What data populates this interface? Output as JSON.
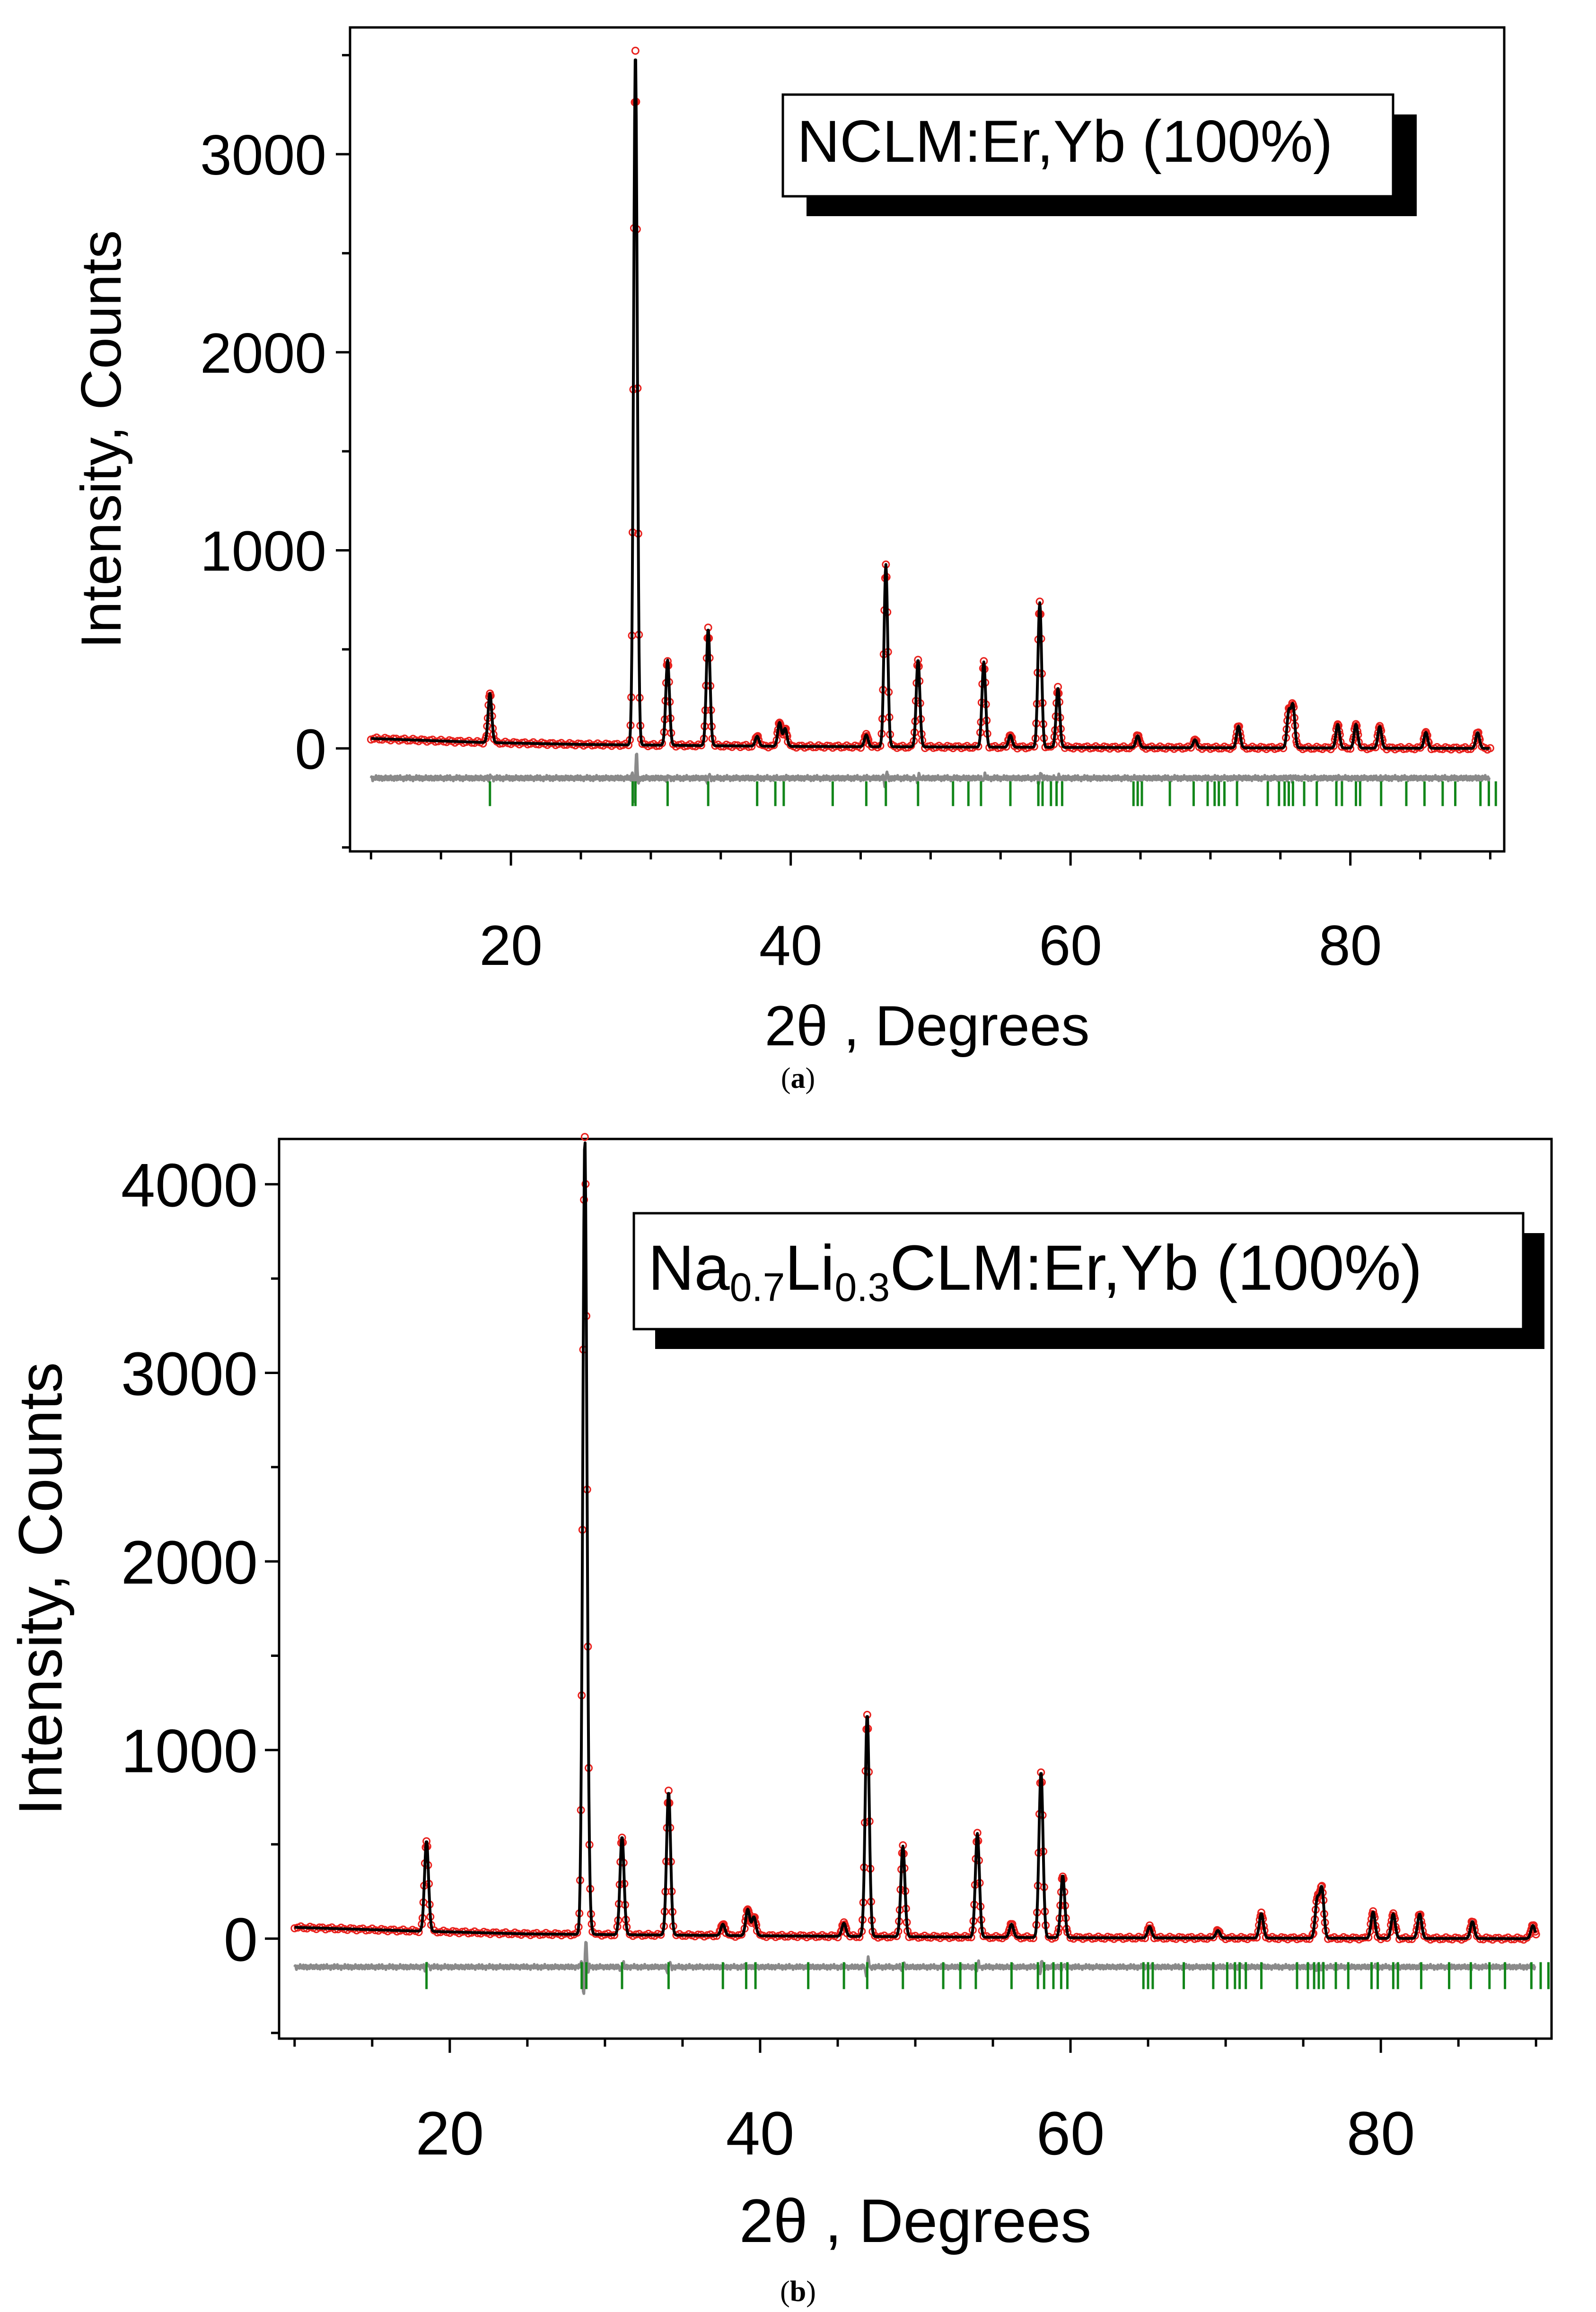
{
  "captions": [
    "(a)",
    "(b)"
  ],
  "legend_style": {
    "box_fill": "#ffffff",
    "shadow": "#000000"
  },
  "colors": {
    "observed": "#e8201c",
    "calculated": "#000000",
    "difference": "#8a8a8a",
    "bragg_ticks": "#12861a"
  },
  "chart_data": [
    {
      "type": "line",
      "panel": "a",
      "caption": "(a)",
      "label": {
        "main": "NCLM:Er,Yb (100%)",
        "sub1": "",
        "sub2": "",
        "rest": ""
      },
      "xlabel": "2θ , Degrees",
      "ylabel": "Intensity, Counts",
      "xlim": [
        8.5,
        91
      ],
      "ylim": [
        -520,
        3640
      ],
      "xticks": [
        20,
        40,
        60,
        80
      ],
      "yticks": [
        0,
        1000,
        2000,
        3000
      ],
      "background": [
        [
          10,
          50
        ],
        [
          14,
          40
        ],
        [
          18,
          30
        ],
        [
          25,
          20
        ],
        [
          40,
          10
        ],
        [
          60,
          5
        ],
        [
          90,
          0
        ]
      ],
      "peaks": [
        {
          "x": 18.5,
          "y": 250
        },
        {
          "x": 28.9,
          "y": 3500
        },
        {
          "x": 31.2,
          "y": 430
        },
        {
          "x": 34.1,
          "y": 590
        },
        {
          "x": 37.6,
          "y": 50
        },
        {
          "x": 39.2,
          "y": 120
        },
        {
          "x": 39.6,
          "y": 90
        },
        {
          "x": 45.4,
          "y": 60
        },
        {
          "x": 46.8,
          "y": 920
        },
        {
          "x": 49.1,
          "y": 440
        },
        {
          "x": 53.8,
          "y": 430
        },
        {
          "x": 55.7,
          "y": 60
        },
        {
          "x": 57.8,
          "y": 730
        },
        {
          "x": 59.1,
          "y": 300
        },
        {
          "x": 64.8,
          "y": 60
        },
        {
          "x": 68.9,
          "y": 40
        },
        {
          "x": 72.0,
          "y": 110
        },
        {
          "x": 75.6,
          "y": 180
        },
        {
          "x": 75.9,
          "y": 210
        },
        {
          "x": 79.1,
          "y": 120
        },
        {
          "x": 80.4,
          "y": 120
        },
        {
          "x": 82.1,
          "y": 110
        },
        {
          "x": 85.4,
          "y": 80
        },
        {
          "x": 89.1,
          "y": 80
        }
      ],
      "difference_offset": -150,
      "bragg_positions": [
        18.5,
        28.7,
        28.9,
        31.2,
        34.1,
        37.6,
        38.9,
        39.5,
        43.0,
        45.4,
        46.8,
        49.1,
        51.6,
        52.7,
        53.6,
        55.7,
        57.7,
        58.0,
        58.6,
        59.0,
        59.4,
        64.5,
        64.8,
        65.1,
        67.1,
        68.8,
        69.8,
        70.3,
        70.6,
        71.0,
        71.9,
        74.1,
        74.9,
        75.3,
        75.6,
        75.9,
        76.7,
        77.6,
        79.0,
        79.4,
        80.4,
        80.7,
        82.2,
        84.0,
        85.3,
        86.6,
        87.5,
        89.3,
        89.9,
        90.4
      ]
    },
    {
      "type": "line",
      "panel": "b",
      "caption": "(b)",
      "label": {
        "main": "Na",
        "sub1": "0.7",
        "sub2": "0.3",
        "rest": "CLM:Er,Yb (100%)",
        "mid": "Li"
      },
      "xlabel": "2θ , Degrees",
      "ylabel": "Intensity, Counts",
      "xlim": [
        9,
        91
      ],
      "ylim": [
        -530,
        4240
      ],
      "xticks": [
        20,
        40,
        60,
        80
      ],
      "yticks": [
        0,
        1000,
        2000,
        3000,
        4000
      ],
      "background": [
        [
          10,
          60
        ],
        [
          14,
          50
        ],
        [
          18,
          40
        ],
        [
          25,
          25
        ],
        [
          40,
          15
        ],
        [
          60,
          5
        ],
        [
          90,
          0
        ]
      ],
      "peaks": [
        {
          "x": 18.5,
          "y": 480
        },
        {
          "x": 28.7,
          "y": 4150
        },
        {
          "x": 28.9,
          "y": 250
        },
        {
          "x": 31.1,
          "y": 520
        },
        {
          "x": 34.1,
          "y": 760
        },
        {
          "x": 37.6,
          "y": 60
        },
        {
          "x": 39.2,
          "y": 140
        },
        {
          "x": 39.6,
          "y": 100
        },
        {
          "x": 45.4,
          "y": 70
        },
        {
          "x": 46.9,
          "y": 1180
        },
        {
          "x": 49.2,
          "y": 480
        },
        {
          "x": 54.0,
          "y": 550
        },
        {
          "x": 56.2,
          "y": 70
        },
        {
          "x": 58.1,
          "y": 880
        },
        {
          "x": 59.5,
          "y": 330
        },
        {
          "x": 65.1,
          "y": 60
        },
        {
          "x": 69.5,
          "y": 40
        },
        {
          "x": 72.3,
          "y": 130
        },
        {
          "x": 75.9,
          "y": 200
        },
        {
          "x": 76.2,
          "y": 260
        },
        {
          "x": 79.5,
          "y": 140
        },
        {
          "x": 80.8,
          "y": 130
        },
        {
          "x": 82.5,
          "y": 130
        },
        {
          "x": 85.9,
          "y": 90
        },
        {
          "x": 89.8,
          "y": 70
        }
      ],
      "difference_offset": -150,
      "bragg_positions": [
        18.5,
        28.5,
        28.8,
        31.1,
        34.1,
        37.6,
        39.1,
        39.7,
        43.1,
        45.4,
        46.9,
        49.2,
        51.8,
        52.9,
        53.9,
        56.2,
        57.9,
        58.3,
        58.9,
        59.4,
        59.8,
        64.7,
        65.0,
        65.3,
        67.3,
        69.2,
        70.1,
        70.6,
        70.9,
        71.3,
        72.3,
        74.6,
        75.3,
        75.7,
        76.0,
        76.3,
        77.1,
        77.9,
        79.4,
        79.8,
        80.8,
        81.1,
        82.6,
        84.4,
        85.8,
        87.0,
        88.0,
        89.7,
        90.3,
        90.8
      ]
    }
  ]
}
